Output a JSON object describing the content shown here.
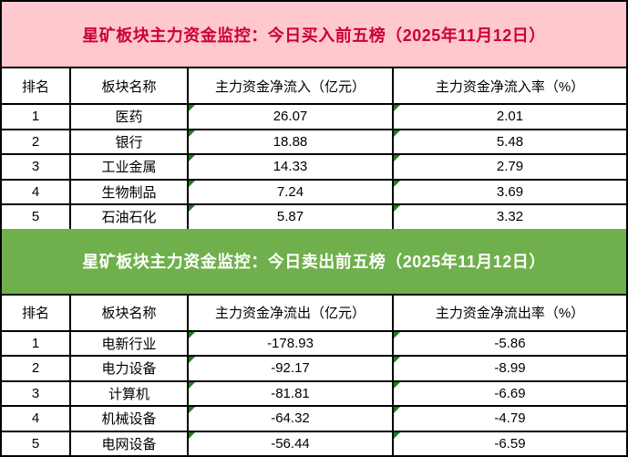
{
  "colors": {
    "buy_header_bg": "#ffc7ce",
    "buy_header_text": "#cc0033",
    "sell_header_bg": "#6fb04c",
    "sell_header_text": "#ffffff",
    "grid_border": "#000000",
    "cell_flag_green": "#1e7e1e"
  },
  "buy": {
    "title": "星矿板块主力资金监控：今日买入前五榜（2025年11月12日）",
    "headers": [
      "排名",
      "板块名称",
      "主力资金净流入（亿元）",
      "主力资金净流入率（%）"
    ],
    "rows": [
      {
        "rank": "1",
        "sector": "医药",
        "value": "26.07",
        "rate": "2.01"
      },
      {
        "rank": "2",
        "sector": "银行",
        "value": "18.88",
        "rate": "5.48"
      },
      {
        "rank": "3",
        "sector": "工业金属",
        "value": "14.33",
        "rate": "2.79"
      },
      {
        "rank": "4",
        "sector": "生物制品",
        "value": "7.24",
        "rate": "3.69"
      },
      {
        "rank": "5",
        "sector": "石油石化",
        "value": "5.87",
        "rate": "3.32"
      }
    ]
  },
  "sell": {
    "title": "星矿板块主力资金监控：今日卖出前五榜（2025年11月12日）",
    "headers": [
      "排名",
      "板块名称",
      "主力资金净流出（亿元）",
      "主力资金净流出率（%）"
    ],
    "rows": [
      {
        "rank": "1",
        "sector": "电新行业",
        "value": "-178.93",
        "rate": "-5.86"
      },
      {
        "rank": "2",
        "sector": "电力设备",
        "value": "-92.17",
        "rate": "-8.99"
      },
      {
        "rank": "3",
        "sector": "计算机",
        "value": "-81.81",
        "rate": "-6.69"
      },
      {
        "rank": "4",
        "sector": "机械设备",
        "value": "-64.32",
        "rate": "-4.79"
      },
      {
        "rank": "5",
        "sector": "电网设备",
        "value": "-56.44",
        "rate": "-6.59"
      }
    ]
  }
}
